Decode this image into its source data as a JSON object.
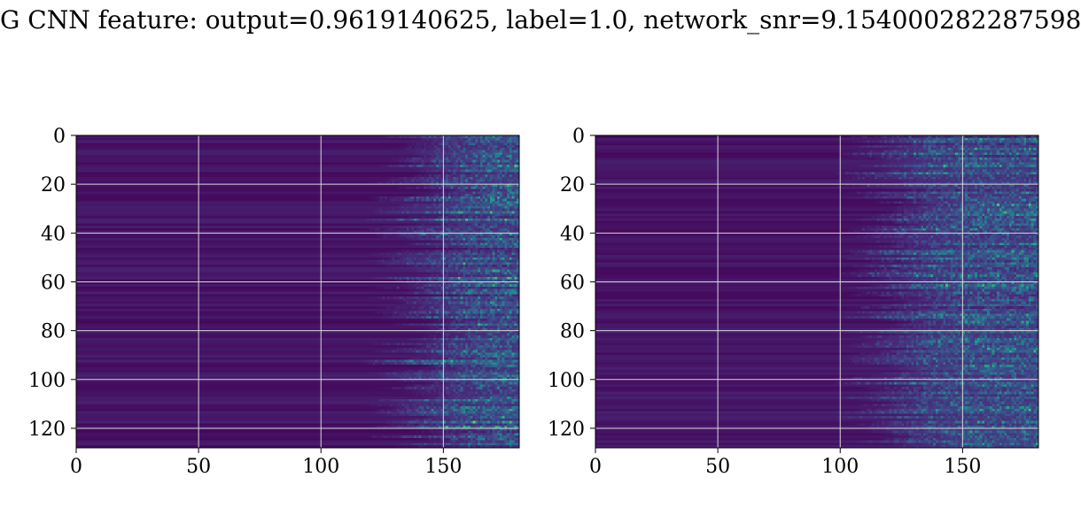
{
  "figure": {
    "title": "G CNN feature: output=0.9619140625, label=1.0, network_snr=9.154000282287598"
  },
  "colors": {
    "background": "#ffffff",
    "grid": "#d9d9d9",
    "colormap": "viridis"
  },
  "chart_data": [
    {
      "type": "heatmap",
      "title": "",
      "xlabel": "",
      "ylabel": "",
      "xlim": [
        0,
        181
      ],
      "ylim": [
        128,
        0
      ],
      "xticks": [
        0,
        50,
        100,
        150
      ],
      "yticks": [
        0,
        20,
        40,
        60,
        80,
        100,
        120
      ],
      "grid": true,
      "colormap": "viridis",
      "rows": 128,
      "cols": 181,
      "activity_onset_col": 130
    },
    {
      "type": "heatmap",
      "title": "",
      "xlabel": "",
      "ylabel": "",
      "xlim": [
        0,
        181
      ],
      "ylim": [
        128,
        0
      ],
      "xticks": [
        0,
        50,
        100,
        150
      ],
      "yticks": [
        0,
        20,
        40,
        60,
        80,
        100,
        120
      ],
      "grid": true,
      "colormap": "viridis",
      "rows": 128,
      "cols": 181,
      "activity_onset_col": 110
    }
  ]
}
